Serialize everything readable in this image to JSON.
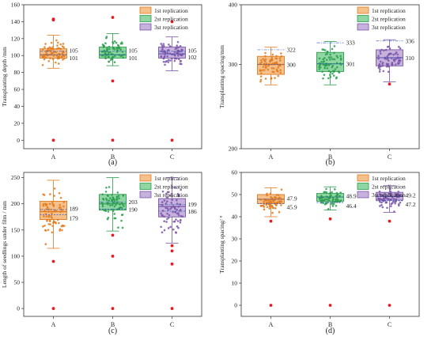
{
  "colors": {
    "rep1": {
      "fill": "#f6c08a",
      "edge": "#e07a1f",
      "dot": "#e07a1f"
    },
    "rep2": {
      "fill": "#8fd6a3",
      "edge": "#2a9d4e",
      "dot": "#2a9d4e"
    },
    "rep3": {
      "fill": "#c6b2dc",
      "edge": "#7a55a8",
      "dot": "#7a55a8"
    },
    "outlier": "#e8191f",
    "mean_line": "#3a5dc4"
  },
  "chart_data": [
    {
      "type": "box",
      "panel_label": "(a)",
      "ylabel": "Transplanting depth /mm",
      "ylim": [
        -10,
        160
      ],
      "yticks": [
        0,
        20,
        40,
        60,
        80,
        100,
        120,
        140,
        160
      ],
      "log_scale": false,
      "categories": [
        "A",
        "B",
        "C"
      ],
      "legend": [
        "1st replication",
        "2st replication",
        "3st replication"
      ],
      "legend_position": "top-right",
      "boxes": [
        {
          "category": "A",
          "series": "1st replication",
          "q1": 97,
          "median": 101,
          "q3": 108,
          "whisker_low": 85,
          "whisker_high": 124,
          "mean": 101,
          "mean_label": "101",
          "upper_label": "105",
          "outliers": [
            0,
            142,
            143
          ]
        },
        {
          "category": "B",
          "series": "2st replication",
          "q1": 97,
          "median": 101,
          "q3": 110,
          "whisker_low": 88,
          "whisker_high": 126,
          "mean": 101,
          "mean_label": "101",
          "upper_label": "105",
          "outliers": [
            0,
            70,
            145
          ]
        },
        {
          "category": "C",
          "series": "3st replication",
          "q1": 97,
          "median": 102,
          "q3": 110,
          "whisker_low": 82,
          "whisker_high": 122,
          "mean": 102,
          "mean_label": "102",
          "upper_label": "105",
          "outliers": [
            0,
            140
          ]
        }
      ]
    },
    {
      "type": "box",
      "panel_label": "(b)",
      "ylabel": "Transplanting spacing/mm",
      "ylim": [
        200,
        400
      ],
      "yticks": [
        200,
        300,
        400
      ],
      "log_scale": true,
      "categories": [
        "A",
        "B",
        "C"
      ],
      "legend": [
        "1st replication",
        "2st replication",
        "3st replication"
      ],
      "legend_position": "top-right",
      "boxes": [
        {
          "category": "A",
          "series": "1st replication",
          "q1": 286,
          "median": 300,
          "q3": 312,
          "whisker_low": 272,
          "whisker_high": 326,
          "mean": 300,
          "mean_label": "300",
          "upper_label": "322",
          "outliers": []
        },
        {
          "category": "B",
          "series": "2st replication",
          "q1": 290,
          "median": 301,
          "q3": 318,
          "whisker_low": 272,
          "whisker_high": 335,
          "mean": 301,
          "mean_label": "301",
          "upper_label": "333",
          "outliers": []
        },
        {
          "category": "C",
          "series": "3st replication",
          "q1": 298,
          "median": 310,
          "q3": 322,
          "whisker_low": 276,
          "whisker_high": 338,
          "mean": 310,
          "mean_label": "310",
          "upper_label": "336",
          "outliers": [
            273
          ]
        }
      ]
    },
    {
      "type": "box",
      "panel_label": "(c)",
      "ylabel": "Length of seedlings under film / mm",
      "ylim": [
        -15,
        260
      ],
      "yticks": [
        0,
        50,
        100,
        150,
        200,
        250
      ],
      "log_scale": false,
      "categories": [
        "A",
        "B",
        "C"
      ],
      "legend": [
        "1st replication",
        "2st replication",
        "3st replication"
      ],
      "legend_position": "top-right",
      "boxes": [
        {
          "category": "A",
          "series": "1st replication",
          "q1": 170,
          "median": 185,
          "q3": 205,
          "whisker_low": 115,
          "whisker_high": 245,
          "mean": 179,
          "mean_label": "179",
          "upper_label": "189",
          "outliers": [
            0,
            90
          ]
        },
        {
          "category": "B",
          "series": "2st replication",
          "q1": 188,
          "median": 200,
          "q3": 218,
          "whisker_low": 148,
          "whisker_high": 250,
          "mean": 190,
          "mean_label": "190",
          "upper_label": "203",
          "outliers": [
            0,
            100,
            140
          ]
        },
        {
          "category": "C",
          "series": "3st replication",
          "q1": 175,
          "median": 195,
          "q3": 210,
          "whisker_low": 125,
          "whisker_high": 250,
          "mean": 186,
          "mean_label": "186",
          "upper_label": "199",
          "outliers": [
            0,
            85,
            110,
            120
          ]
        }
      ]
    },
    {
      "type": "box",
      "panel_label": "(d)",
      "ylabel": "Transplanting spacing/ °",
      "ylim": [
        -5,
        60
      ],
      "yticks": [
        0,
        10,
        20,
        30,
        40,
        50,
        60
      ],
      "log_scale": false,
      "categories": [
        "A",
        "B",
        "C"
      ],
      "legend": [
        "1st replication",
        "2st replication",
        "3st replication"
      ],
      "legend_position": "top-right",
      "boxes": [
        {
          "category": "A",
          "series": "1st replication",
          "q1": 46,
          "median": 47.9,
          "q3": 50,
          "whisker_low": 40,
          "whisker_high": 53,
          "mean": 45.9,
          "mean_label": "45.9",
          "upper_label": "47.9",
          "outliers": [
            0,
            38
          ]
        },
        {
          "category": "B",
          "series": "2st replication",
          "q1": 47,
          "median": 48.9,
          "q3": 50.5,
          "whisker_low": 43,
          "whisker_high": 53.5,
          "mean": 46.4,
          "mean_label": "46.4",
          "upper_label": "48.9",
          "outliers": [
            0,
            39
          ]
        },
        {
          "category": "C",
          "series": "3st replication",
          "q1": 47.5,
          "median": 49.2,
          "q3": 51,
          "whisker_low": 42,
          "whisker_high": 54,
          "mean": 47.2,
          "mean_label": "47.2",
          "upper_label": "49.2",
          "outliers": [
            0,
            38
          ]
        }
      ]
    }
  ]
}
